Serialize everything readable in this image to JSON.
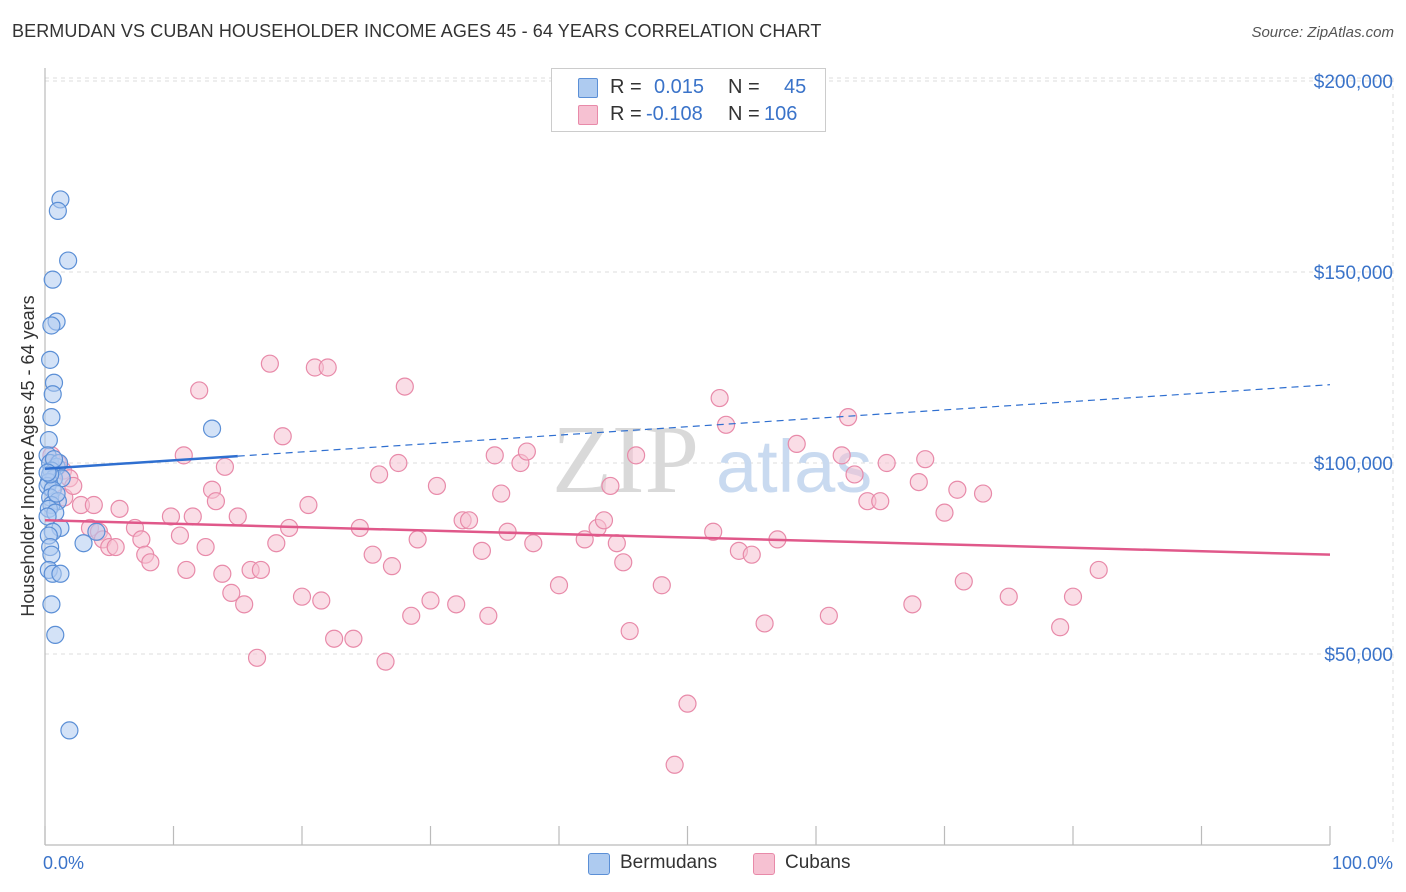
{
  "title": "BERMUDAN VS CUBAN HOUSEHOLDER INCOME AGES 45 - 64 YEARS CORRELATION CHART",
  "source": "Source: ZipAtlas.com",
  "watermark": {
    "zip": "ZIP",
    "atlas": "atlas"
  },
  "stats": [
    {
      "r_label": "R =",
      "r_value": "0.015",
      "n_label": "N =",
      "n_value": "45"
    },
    {
      "r_label": "R =",
      "r_value": "-0.108",
      "n_label": "N =",
      "n_value": "106"
    }
  ],
  "legend": {
    "items": [
      "Bermudans",
      "Cubans"
    ]
  },
  "colors": {
    "bermudans_fill": "#aecbf0",
    "bermudans_stroke": "#5b8fd6",
    "bermudans_line": "#2f6fd0",
    "cubans_fill": "#f6c1d2",
    "cubans_stroke": "#e88aa9",
    "cubans_line": "#e0588a",
    "axis_text": "#3a73c9"
  },
  "chart_data": {
    "type": "scatter",
    "xlabel": "",
    "ylabel": "Householder Income Ages 45 - 64 years",
    "xlim": [
      0,
      100
    ],
    "ylim": [
      0,
      205000
    ],
    "x_tick_labels": [
      "0.0%",
      "100.0%"
    ],
    "y_ticks": [
      50000,
      100000,
      150000,
      200000
    ],
    "y_tick_labels": [
      "$50,000",
      "$100,000",
      "$150,000",
      "$200,000"
    ],
    "grid": "horizontal dashed",
    "legend_position": "bottom-center",
    "series": [
      {
        "name": "Bermudans",
        "trend": {
          "x_start": 0,
          "y_start": 98500,
          "x_solid_end": 15,
          "x_end": 100,
          "y_end": 120500
        },
        "points": [
          [
            1.2,
            169000
          ],
          [
            1.0,
            166000
          ],
          [
            1.8,
            153000
          ],
          [
            0.6,
            148000
          ],
          [
            0.9,
            137000
          ],
          [
            0.5,
            136000
          ],
          [
            0.4,
            127000
          ],
          [
            0.7,
            121000
          ],
          [
            0.6,
            118000
          ],
          [
            0.5,
            112000
          ],
          [
            13.0,
            109000
          ],
          [
            0.3,
            106000
          ],
          [
            0.2,
            102000
          ],
          [
            0.4,
            100000
          ],
          [
            0.9,
            99000
          ],
          [
            1.1,
            100000
          ],
          [
            0.5,
            98000
          ],
          [
            0.7,
            96000
          ],
          [
            1.3,
            96000
          ],
          [
            0.3,
            95000
          ],
          [
            0.2,
            94000
          ],
          [
            0.6,
            93000
          ],
          [
            0.4,
            91000
          ],
          [
            1.0,
            90000
          ],
          [
            0.5,
            89000
          ],
          [
            0.3,
            88000
          ],
          [
            0.8,
            87000
          ],
          [
            0.2,
            86000
          ],
          [
            1.2,
            83000
          ],
          [
            0.6,
            82000
          ],
          [
            4.0,
            82000
          ],
          [
            0.3,
            81000
          ],
          [
            3.0,
            79000
          ],
          [
            0.4,
            78000
          ],
          [
            0.5,
            76000
          ],
          [
            0.3,
            72000
          ],
          [
            0.6,
            71000
          ],
          [
            1.2,
            71000
          ],
          [
            0.5,
            63000
          ],
          [
            0.8,
            55000
          ],
          [
            1.9,
            30000
          ],
          [
            0.4,
            97000
          ],
          [
            0.7,
            101000
          ],
          [
            0.9,
            92000
          ],
          [
            0.2,
            97500
          ]
        ]
      },
      {
        "name": "Cubans",
        "trend": {
          "x_start": 0,
          "y_start": 85000,
          "x_end": 100,
          "y_end": 76000
        },
        "points": [
          [
            0.5,
            102000
          ],
          [
            1.0,
            100000
          ],
          [
            1.4,
            98000
          ],
          [
            1.9,
            96000
          ],
          [
            1.5,
            91000
          ],
          [
            2.2,
            94000
          ],
          [
            2.8,
            89000
          ],
          [
            3.8,
            89000
          ],
          [
            5.8,
            88000
          ],
          [
            3.5,
            83000
          ],
          [
            4.2,
            82000
          ],
          [
            4.5,
            80000
          ],
          [
            5.0,
            78000
          ],
          [
            5.5,
            78000
          ],
          [
            7.0,
            83000
          ],
          [
            7.5,
            80000
          ],
          [
            7.8,
            76000
          ],
          [
            8.2,
            74000
          ],
          [
            9.8,
            86000
          ],
          [
            10.5,
            81000
          ],
          [
            11.0,
            72000
          ],
          [
            10.8,
            102000
          ],
          [
            11.5,
            86000
          ],
          [
            12.0,
            119000
          ],
          [
            12.5,
            78000
          ],
          [
            13.0,
            93000
          ],
          [
            13.3,
            90000
          ],
          [
            13.8,
            71000
          ],
          [
            14.0,
            99000
          ],
          [
            14.5,
            66000
          ],
          [
            15.0,
            86000
          ],
          [
            15.5,
            63000
          ],
          [
            16.0,
            72000
          ],
          [
            16.5,
            49000
          ],
          [
            16.8,
            72000
          ],
          [
            17.5,
            126000
          ],
          [
            18.0,
            79000
          ],
          [
            18.5,
            107000
          ],
          [
            19.0,
            83000
          ],
          [
            20.0,
            65000
          ],
          [
            20.5,
            89000
          ],
          [
            21.0,
            125000
          ],
          [
            21.5,
            64000
          ],
          [
            22.0,
            125000
          ],
          [
            22.5,
            54000
          ],
          [
            24.0,
            54000
          ],
          [
            24.5,
            83000
          ],
          [
            25.5,
            76000
          ],
          [
            26.0,
            97000
          ],
          [
            26.5,
            48000
          ],
          [
            27.0,
            73000
          ],
          [
            27.5,
            100000
          ],
          [
            28.0,
            120000
          ],
          [
            28.5,
            60000
          ],
          [
            29.0,
            80000
          ],
          [
            30.0,
            64000
          ],
          [
            30.5,
            94000
          ],
          [
            32.0,
            63000
          ],
          [
            32.5,
            85000
          ],
          [
            33.0,
            85000
          ],
          [
            34.0,
            77000
          ],
          [
            34.5,
            60000
          ],
          [
            35.0,
            102000
          ],
          [
            35.5,
            92000
          ],
          [
            36.0,
            82000
          ],
          [
            37.0,
            100000
          ],
          [
            37.5,
            103000
          ],
          [
            38.0,
            79000
          ],
          [
            40.0,
            68000
          ],
          [
            42.0,
            80000
          ],
          [
            43.0,
            83000
          ],
          [
            43.5,
            85000
          ],
          [
            44.0,
            94000
          ],
          [
            44.5,
            79000
          ],
          [
            45.0,
            74000
          ],
          [
            45.5,
            56000
          ],
          [
            46.0,
            102000
          ],
          [
            48.0,
            68000
          ],
          [
            49.0,
            21000
          ],
          [
            50.0,
            37000
          ],
          [
            52.0,
            82000
          ],
          [
            52.5,
            117000
          ],
          [
            53.0,
            110000
          ],
          [
            54.0,
            77000
          ],
          [
            55.0,
            76000
          ],
          [
            56.0,
            58000
          ],
          [
            57.0,
            80000
          ],
          [
            58.5,
            105000
          ],
          [
            61.0,
            60000
          ],
          [
            62.0,
            102000
          ],
          [
            62.5,
            112000
          ],
          [
            63.0,
            97000
          ],
          [
            64.0,
            90000
          ],
          [
            65.0,
            90000
          ],
          [
            65.5,
            100000
          ],
          [
            67.5,
            63000
          ],
          [
            68.0,
            95000
          ],
          [
            68.5,
            101000
          ],
          [
            70.0,
            87000
          ],
          [
            71.0,
            93000
          ],
          [
            71.5,
            69000
          ],
          [
            75.0,
            65000
          ],
          [
            79.0,
            57000
          ],
          [
            80.0,
            65000
          ],
          [
            82.0,
            72000
          ],
          [
            73.0,
            92000
          ]
        ]
      }
    ]
  }
}
